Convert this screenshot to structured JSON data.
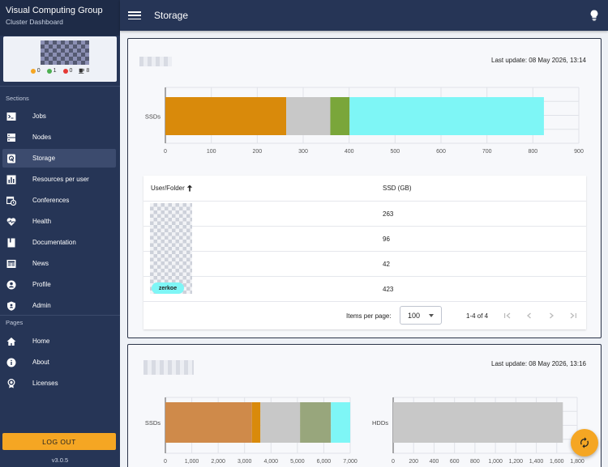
{
  "brand": {
    "title": "Visual Computing Group",
    "subtitle": "Cluster Dashboard"
  },
  "user_stats": [
    {
      "value": "0",
      "color": "#f5a623"
    },
    {
      "value": "1",
      "color": "#4caf50"
    },
    {
      "value": "0",
      "color": "#e53935"
    },
    {
      "value": "8",
      "icon": "cup-icon"
    }
  ],
  "sections_label": "Sections",
  "sections": [
    {
      "label": "Jobs",
      "icon": "terminal-icon"
    },
    {
      "label": "Nodes",
      "icon": "server-icon"
    },
    {
      "label": "Storage",
      "icon": "disk-icon",
      "active": true
    },
    {
      "label": "Resources per user",
      "icon": "chart-icon"
    },
    {
      "label": "Conferences",
      "icon": "calendar-clock-icon"
    },
    {
      "label": "Health",
      "icon": "heart-pulse-icon"
    },
    {
      "label": "Documentation",
      "icon": "book-icon"
    },
    {
      "label": "News",
      "icon": "newspaper-icon"
    },
    {
      "label": "Profile",
      "icon": "account-icon"
    },
    {
      "label": "Admin",
      "icon": "shield-icon"
    }
  ],
  "pages_label": "Pages",
  "pages": [
    {
      "label": "Home",
      "icon": "home-icon"
    },
    {
      "label": "About",
      "icon": "info-icon"
    },
    {
      "label": "Licenses",
      "icon": "license-icon"
    }
  ],
  "logout_label": "LOG OUT",
  "version": "v3.0.5",
  "topbar": {
    "title": "Storage"
  },
  "card1": {
    "last_update": "Last update: 08 May 2026, 13:14",
    "table": {
      "col_user": "User/Folder",
      "col_ssd": "SSD (GB)",
      "rows": [
        {
          "ssd": "263"
        },
        {
          "ssd": "96"
        },
        {
          "ssd": "42"
        },
        {
          "ssd": "423"
        }
      ],
      "chip_label": "zerkoe"
    },
    "pager": {
      "items_per_page_label": "Items per page:",
      "items_per_page": "100",
      "range": "1-4 of 4"
    }
  },
  "card2": {
    "last_update": "Last update: 08 May 2026, 13:16"
  },
  "chart_data": [
    {
      "type": "bar",
      "orientation": "horizontal-stacked",
      "categories": [
        "SSDs"
      ],
      "series": [
        {
          "values": [
            263
          ],
          "color": "#d98a0b"
        },
        {
          "values": [
            96
          ],
          "color": "#c8c8c8"
        },
        {
          "values": [
            42
          ],
          "color": "#7aa63a"
        },
        {
          "values": [
            423
          ],
          "color": "#7ef6f6"
        }
      ],
      "xlim": [
        0,
        900
      ],
      "xticks": [
        "0",
        "100",
        "200",
        "300",
        "400",
        "500",
        "600",
        "700",
        "800",
        "900"
      ],
      "grid": true
    },
    {
      "type": "bar",
      "orientation": "horizontal-stacked",
      "categories": [
        "SSDs"
      ],
      "series": [
        {
          "values": [
            3280
          ],
          "color": "#cf8a4a"
        },
        {
          "values": [
            320
          ],
          "color": "#d98a0b"
        },
        {
          "values": [
            1500
          ],
          "color": "#c8c8c8"
        },
        {
          "values": [
            1170
          ],
          "color": "#98a67c"
        },
        {
          "values": [
            730
          ],
          "color": "#7ef6f6"
        }
      ],
      "xlim": [
        0,
        7000
      ],
      "xticks": [
        "0",
        "1,000",
        "2,000",
        "3,000",
        "4,000",
        "5,000",
        "6,000",
        "7,000"
      ],
      "grid": true
    },
    {
      "type": "bar",
      "orientation": "horizontal-stacked",
      "categories": [
        "HDDs"
      ],
      "series": [
        {
          "values": [
            1660
          ],
          "color": "#c8c8c8"
        }
      ],
      "xlim": [
        0,
        1800
      ],
      "xticks": [
        "0",
        "200",
        "400",
        "600",
        "800",
        "1,000",
        "1,200",
        "1,400",
        "1,600",
        "1,800"
      ],
      "grid": true
    }
  ]
}
